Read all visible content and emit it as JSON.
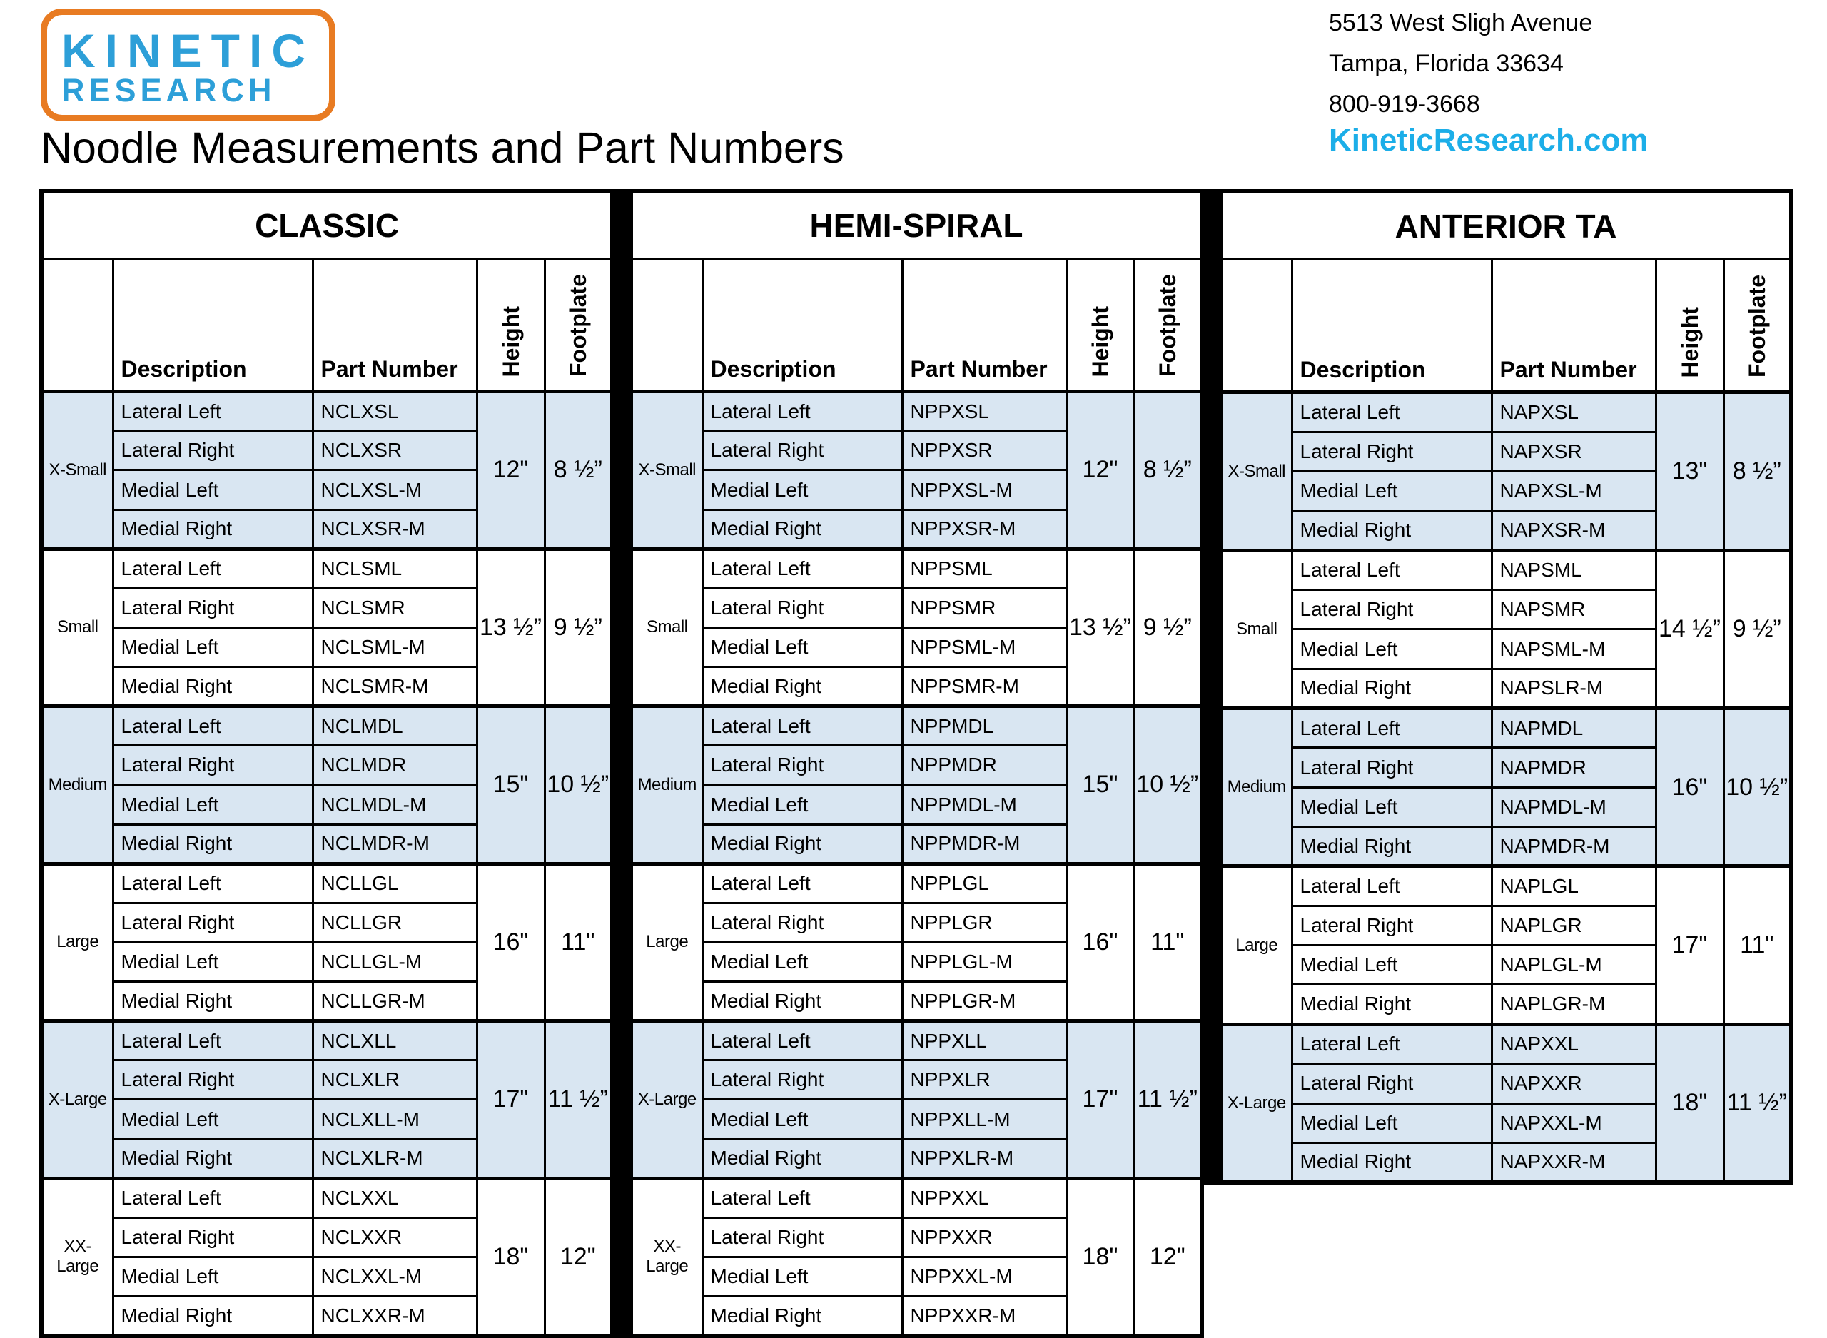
{
  "header": {
    "logo": {
      "line1": "KINETIC",
      "line2": "RESEARCH"
    },
    "title": "Noodle Measurements and Part Numbers",
    "address_lines": [
      "5513 West Sligh Avenue",
      "Tampa, Florida 33634",
      "800-919-3668"
    ],
    "website": "KineticResearch.com"
  },
  "colors": {
    "logo_blue": "#2d9fd8",
    "logo_orange": "#e87b22",
    "website_cyan": "#1caee8",
    "row_highlight": "#d9e6f2",
    "border": "#000000"
  },
  "table_headers": {
    "description": "Description",
    "part_number": "Part Number",
    "height": "Height",
    "footplate": "Footplate"
  },
  "tables": [
    {
      "title": "CLASSIC",
      "groups": [
        {
          "size": "X-Small",
          "height": "12\"",
          "footplate": "8 ½”",
          "rows": [
            [
              "Lateral Left",
              "NCLXSL"
            ],
            [
              "Lateral Right",
              "NCLXSR"
            ],
            [
              "Medial Left",
              "NCLXSL-M"
            ],
            [
              "Medial Right",
              "NCLXSR-M"
            ]
          ]
        },
        {
          "size": "Small",
          "height": "13 ½”",
          "footplate": "9 ½”",
          "rows": [
            [
              "Lateral Left",
              "NCLSML"
            ],
            [
              "Lateral Right",
              "NCLSMR"
            ],
            [
              "Medial Left",
              "NCLSML-M"
            ],
            [
              "Medial Right",
              "NCLSMR-M"
            ]
          ]
        },
        {
          "size": "Medium",
          "height": "15\"",
          "footplate": "10 ½”",
          "rows": [
            [
              "Lateral Left",
              "NCLMDL"
            ],
            [
              "Lateral Right",
              "NCLMDR"
            ],
            [
              "Medial Left",
              "NCLMDL-M"
            ],
            [
              "Medial Right",
              "NCLMDR-M"
            ]
          ]
        },
        {
          "size": "Large",
          "height": "16\"",
          "footplate": "11\"",
          "rows": [
            [
              "Lateral Left",
              "NCLLGL"
            ],
            [
              "Lateral Right",
              "NCLLGR"
            ],
            [
              "Medial Left",
              "NCLLGL-M"
            ],
            [
              "Medial Right",
              "NCLLGR-M"
            ]
          ]
        },
        {
          "size": "X-Large",
          "height": "17\"",
          "footplate": "11 ½”",
          "rows": [
            [
              "Lateral Left",
              "NCLXLL"
            ],
            [
              "Lateral Right",
              "NCLXLR"
            ],
            [
              "Medial Left",
              "NCLXLL-M"
            ],
            [
              "Medial Right",
              "NCLXLR-M"
            ]
          ]
        },
        {
          "size": "XX-Large",
          "height": "18\"",
          "footplate": "12\"",
          "rows": [
            [
              "Lateral Left",
              "NCLXXL"
            ],
            [
              "Lateral Right",
              "NCLXXR"
            ],
            [
              "Medial Left",
              "NCLXXL-M"
            ],
            [
              "Medial Right",
              "NCLXXR-M"
            ]
          ]
        }
      ]
    },
    {
      "title": "HEMI-SPIRAL",
      "groups": [
        {
          "size": "X-Small",
          "height": "12\"",
          "footplate": "8 ½”",
          "rows": [
            [
              "Lateral Left",
              "NPPXSL"
            ],
            [
              "Lateral Right",
              "NPPXSR"
            ],
            [
              "Medial Left",
              "NPPXSL-M"
            ],
            [
              "Medial Right",
              "NPPXSR-M"
            ]
          ]
        },
        {
          "size": "Small",
          "height": "13 ½”",
          "footplate": "9 ½”",
          "rows": [
            [
              "Lateral Left",
              "NPPSML"
            ],
            [
              "Lateral Right",
              "NPPSMR"
            ],
            [
              "Medial Left",
              "NPPSML-M"
            ],
            [
              "Medial Right",
              "NPPSMR-M"
            ]
          ]
        },
        {
          "size": "Medium",
          "height": "15\"",
          "footplate": "10 ½”",
          "rows": [
            [
              "Lateral Left",
              "NPPMDL"
            ],
            [
              "Lateral Right",
              "NPPMDR"
            ],
            [
              "Medial Left",
              "NPPMDL-M"
            ],
            [
              "Medial Right",
              "NPPMDR-M"
            ]
          ]
        },
        {
          "size": "Large",
          "height": "16\"",
          "footplate": "11\"",
          "rows": [
            [
              "Lateral Left",
              "NPPLGL"
            ],
            [
              "Lateral Right",
              "NPPLGR"
            ],
            [
              "Medial Left",
              "NPPLGL-M"
            ],
            [
              "Medial Right",
              "NPPLGR-M"
            ]
          ]
        },
        {
          "size": "X-Large",
          "height": "17\"",
          "footplate": "11 ½”",
          "rows": [
            [
              "Lateral Left",
              "NPPXLL"
            ],
            [
              "Lateral Right",
              "NPPXLR"
            ],
            [
              "Medial Left",
              "NPPXLL-M"
            ],
            [
              "Medial Right",
              "NPPXLR-M"
            ]
          ]
        },
        {
          "size": "XX-Large",
          "height": "18\"",
          "footplate": "12\"",
          "rows": [
            [
              "Lateral Left",
              "NPPXXL"
            ],
            [
              "Lateral Right",
              "NPPXXR"
            ],
            [
              "Medial Left",
              "NPPXXL-M"
            ],
            [
              "Medial Right",
              "NPPXXR-M"
            ]
          ]
        }
      ]
    },
    {
      "title": "ANTERIOR TA",
      "groups": [
        {
          "size": "X-Small",
          "height": "13\"",
          "footplate": "8 ½”",
          "rows": [
            [
              "Lateral Left",
              "NAPXSL"
            ],
            [
              "Lateral Right",
              "NAPXSR"
            ],
            [
              "Medial Left",
              "NAPXSL-M"
            ],
            [
              "Medial Right",
              "NAPXSR-M"
            ]
          ]
        },
        {
          "size": "Small",
          "height": "14 ½”",
          "footplate": "9 ½”",
          "rows": [
            [
              "Lateral Left",
              "NAPSML"
            ],
            [
              "Lateral Right",
              "NAPSMR"
            ],
            [
              "Medial Left",
              "NAPSML-M"
            ],
            [
              "Medial Right",
              "NAPSLR-M"
            ]
          ]
        },
        {
          "size": "Medium",
          "height": "16\"",
          "footplate": "10 ½”",
          "rows": [
            [
              "Lateral Left",
              "NAPMDL"
            ],
            [
              "Lateral Right",
              "NAPMDR"
            ],
            [
              "Medial Left",
              "NAPMDL-M"
            ],
            [
              "Medial Right",
              "NAPMDR-M"
            ]
          ]
        },
        {
          "size": "Large",
          "height": "17\"",
          "footplate": "11\"",
          "rows": [
            [
              "Lateral Left",
              "NAPLGL"
            ],
            [
              "Lateral Right",
              "NAPLGR"
            ],
            [
              "Medial Left",
              "NAPLGL-M"
            ],
            [
              "Medial Right",
              "NAPLGR-M"
            ]
          ]
        },
        {
          "size": "X-Large",
          "height": "18\"",
          "footplate": "11 ½”",
          "rows": [
            [
              "Lateral Left",
              "NAPXXL"
            ],
            [
              "Lateral Right",
              "NAPXXR"
            ],
            [
              "Medial Left",
              "NAPXXL-M"
            ],
            [
              "Medial Right",
              "NAPXXR-M"
            ]
          ]
        }
      ]
    }
  ]
}
